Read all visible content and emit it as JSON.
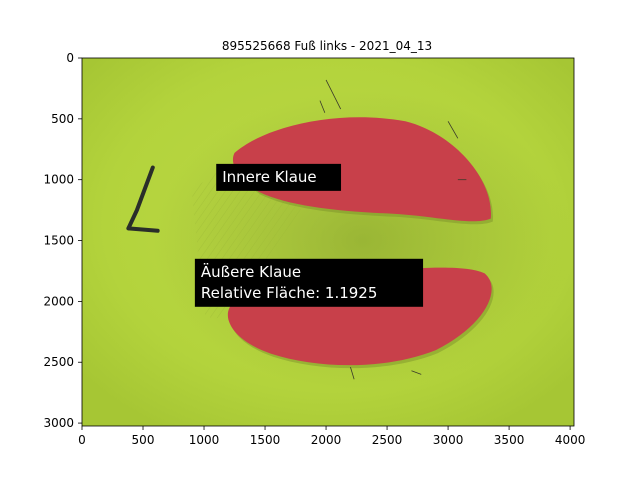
{
  "chart_data": {
    "type": "image",
    "title": "895525668 Fuß links - 2021_04_13",
    "xlabel": "",
    "ylabel": "",
    "xlim": [
      0,
      4032
    ],
    "ylim": [
      3024,
      0
    ],
    "x_ticks": [
      0,
      500,
      1000,
      1500,
      2000,
      2500,
      3000,
      3500,
      4000
    ],
    "y_ticks": [
      0,
      500,
      1000,
      1500,
      2000,
      2500,
      3000
    ],
    "image_description_colors": {
      "background": "#b4d43c",
      "claw_mask": "#c8404a",
      "marker": "#2a2e2a"
    },
    "annotations": [
      {
        "lines": [
          "Innere Klaue"
        ],
        "x": 1100,
        "y": 870
      },
      {
        "lines": [
          "Äußere Klaue",
          "Relative Fläche: 1.1925"
        ],
        "x": 925,
        "y": 1650
      }
    ]
  }
}
